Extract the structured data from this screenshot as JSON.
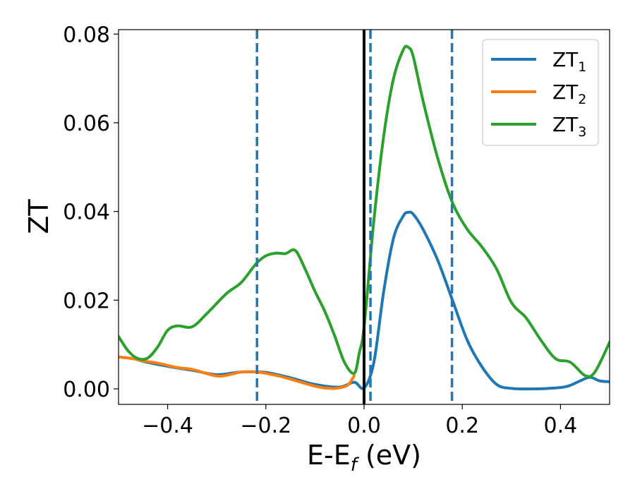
{
  "chart_data": {
    "type": "line",
    "xlabel": "E-E",
    "xlabel_sub": "f",
    "xlabel_unit": " (eV)",
    "ylabel": "ZT",
    "xlim": [
      -0.5,
      0.5
    ],
    "ylim": [
      -0.0035,
      0.081
    ],
    "xticks": [
      -0.4,
      -0.2,
      0.0,
      0.2,
      0.4
    ],
    "xtick_labels": [
      "−0.4",
      "−0.2",
      "0.0",
      "0.2",
      "0.4"
    ],
    "yticks": [
      0.0,
      0.02,
      0.04,
      0.06,
      0.08
    ],
    "ytick_labels": [
      "0.00",
      "0.02",
      "0.04",
      "0.06",
      "0.08"
    ],
    "grid": false,
    "legend_position": "top-right",
    "vlines": [
      {
        "x": 0.0,
        "style": "solid",
        "color": "#000000"
      },
      {
        "x": -0.218,
        "style": "dashed",
        "color": "#1f77b4"
      },
      {
        "x": 0.013,
        "style": "dashed",
        "color": "#1f77b4"
      },
      {
        "x": 0.179,
        "style": "dashed",
        "color": "#1f77b4"
      }
    ],
    "series": [
      {
        "name": "ZT",
        "sub": "1",
        "color": "#1f77b4",
        "x": [
          -0.5,
          -0.47,
          -0.45,
          -0.42,
          -0.38,
          -0.35,
          -0.3,
          -0.25,
          -0.2,
          -0.15,
          -0.1,
          -0.05,
          -0.02,
          0.0,
          0.02,
          0.04,
          0.06,
          0.08,
          0.09,
          0.1,
          0.12,
          0.15,
          0.18,
          0.21,
          0.24,
          0.27,
          0.3,
          0.35,
          0.4,
          0.42,
          0.44,
          0.46,
          0.48,
          0.5
        ],
        "y": [
          0.0072,
          0.0068,
          0.0062,
          0.0055,
          0.0047,
          0.0042,
          0.0032,
          0.0038,
          0.0037,
          0.0025,
          0.001,
          0.0004,
          0.0015,
          0.0002,
          0.006,
          0.022,
          0.034,
          0.039,
          0.0398,
          0.0394,
          0.036,
          0.029,
          0.02,
          0.011,
          0.005,
          0.001,
          0.0001,
          0.0,
          0.0003,
          0.0008,
          0.0018,
          0.0026,
          0.0018,
          0.0016
        ]
      },
      {
        "name": "ZT",
        "sub": "2",
        "color": "#ff7f0e",
        "x": [
          -0.5,
          -0.47,
          -0.45,
          -0.42,
          -0.38,
          -0.35,
          -0.3,
          -0.27,
          -0.25,
          -0.22,
          -0.2,
          -0.17,
          -0.15,
          -0.12,
          -0.1,
          -0.08,
          -0.06,
          -0.04,
          -0.03,
          -0.02
        ],
        "y": [
          0.0072,
          0.0068,
          0.0063,
          0.0058,
          0.0048,
          0.0044,
          0.0029,
          0.0033,
          0.0038,
          0.0038,
          0.0035,
          0.0028,
          0.0022,
          0.0012,
          0.0006,
          0.0002,
          0.0001,
          0.0005,
          0.0012,
          0.003
        ]
      },
      {
        "name": "ZT",
        "sub": "3",
        "color": "#2ca02c",
        "x": [
          -0.5,
          -0.48,
          -0.46,
          -0.44,
          -0.42,
          -0.4,
          -0.38,
          -0.35,
          -0.32,
          -0.28,
          -0.25,
          -0.22,
          -0.2,
          -0.18,
          -0.16,
          -0.14,
          -0.12,
          -0.1,
          -0.08,
          -0.06,
          -0.04,
          -0.02,
          -0.01,
          0.0,
          0.02,
          0.04,
          0.06,
          0.08,
          0.09,
          0.1,
          0.12,
          0.15,
          0.18,
          0.21,
          0.24,
          0.27,
          0.3,
          0.33,
          0.36,
          0.39,
          0.42,
          0.45,
          0.47,
          0.5
        ],
        "y": [
          0.0118,
          0.0085,
          0.0068,
          0.007,
          0.0095,
          0.0132,
          0.0142,
          0.014,
          0.017,
          0.0215,
          0.024,
          0.0282,
          0.03,
          0.0306,
          0.0305,
          0.0312,
          0.027,
          0.022,
          0.0175,
          0.012,
          0.006,
          0.0035,
          0.008,
          0.014,
          0.038,
          0.057,
          0.07,
          0.0765,
          0.077,
          0.075,
          0.065,
          0.052,
          0.042,
          0.036,
          0.032,
          0.027,
          0.0195,
          0.016,
          0.011,
          0.0068,
          0.006,
          0.003,
          0.0038,
          0.0105
        ]
      }
    ]
  }
}
